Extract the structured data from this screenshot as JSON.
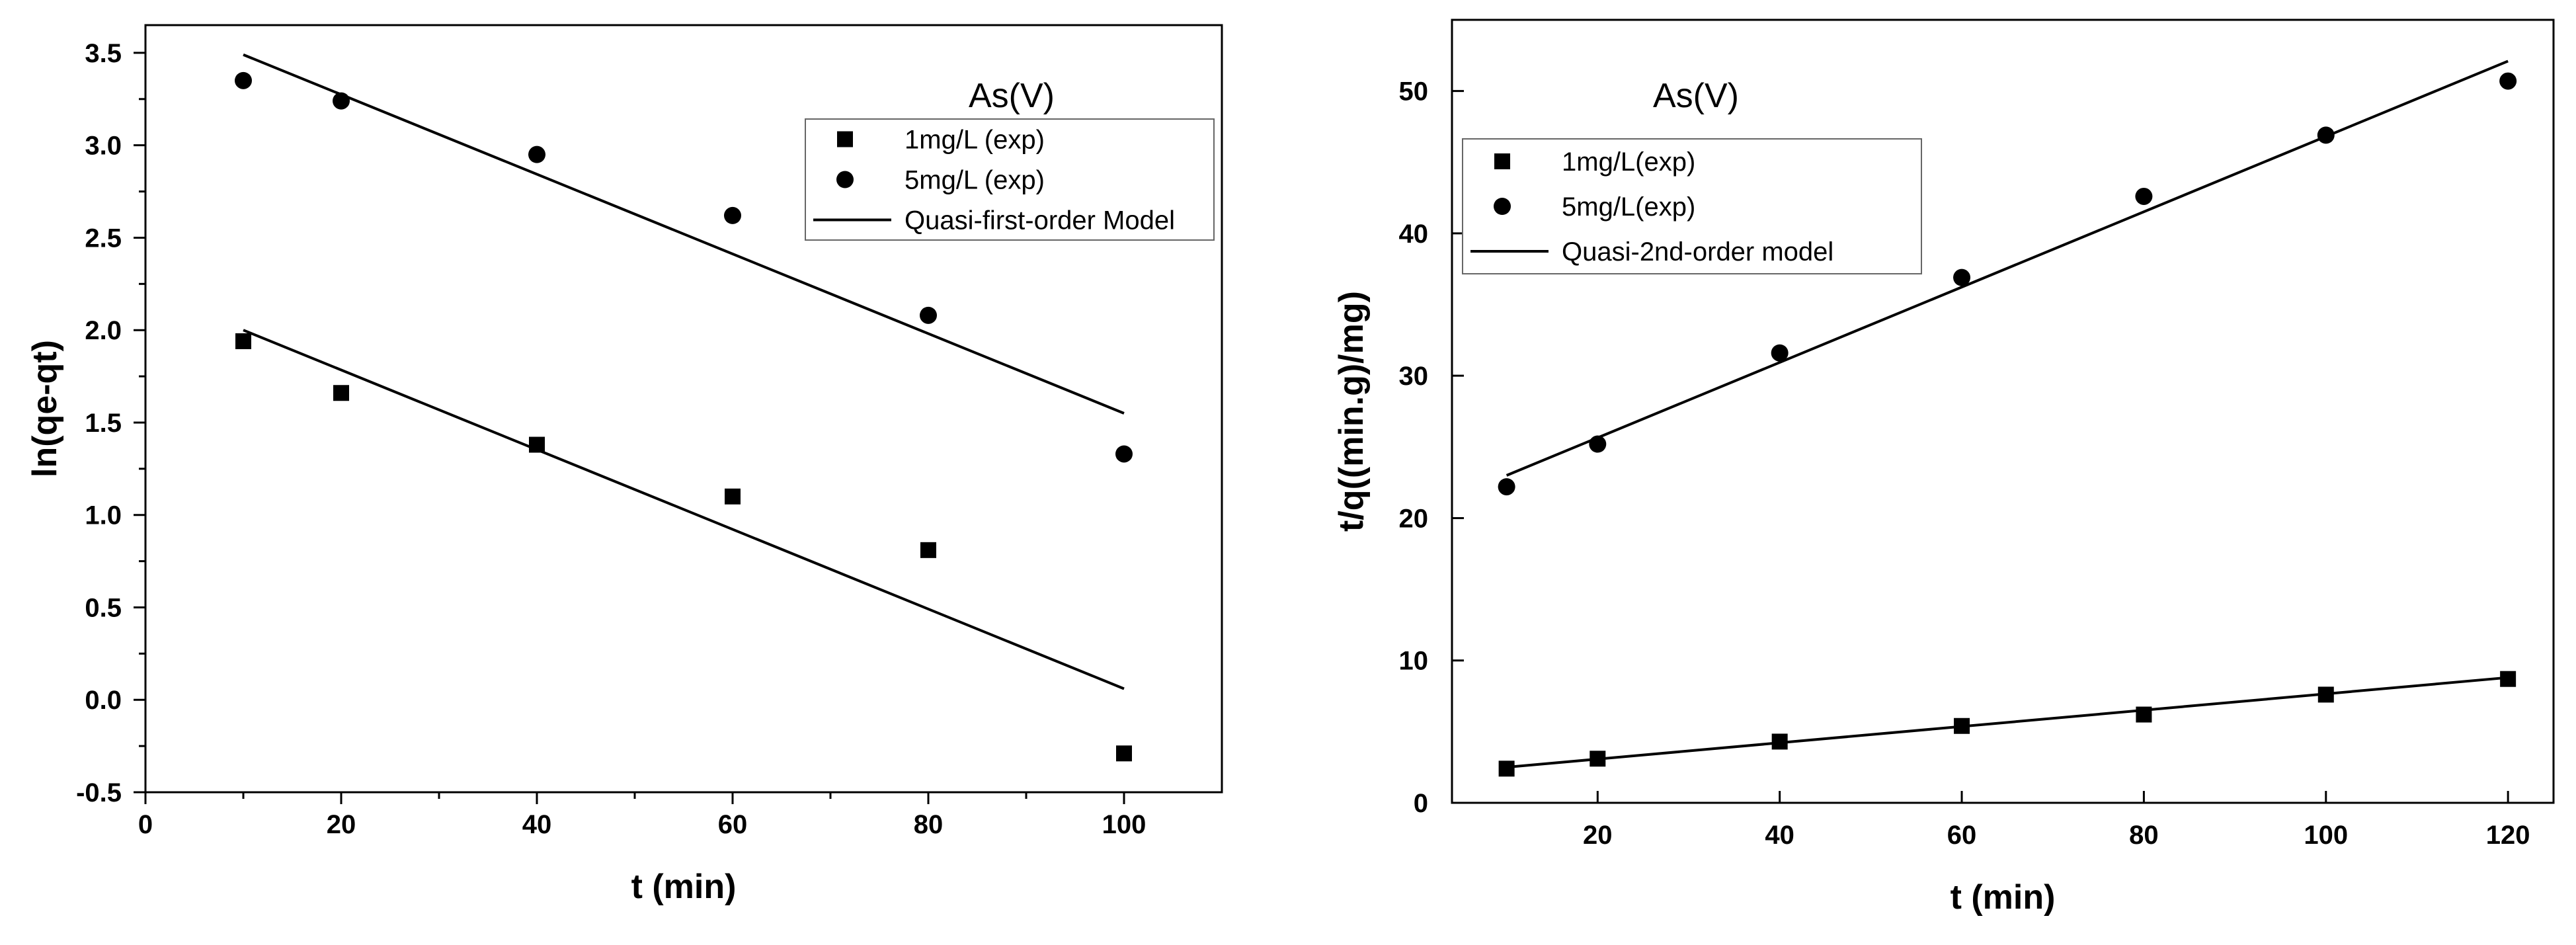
{
  "chart_data": [
    {
      "type": "scatter",
      "annotation": "As(V)",
      "xlabel": "t (min)",
      "ylabel": "ln(qe-qt)",
      "xlim": [
        0,
        110
      ],
      "ylim": [
        -0.5,
        3.65
      ],
      "xticks": [
        0,
        20,
        40,
        60,
        80,
        100
      ],
      "xtick_labels": [
        "0",
        "20",
        "40",
        "60",
        "80",
        "100"
      ],
      "yticks": [
        -0.5,
        0.0,
        0.5,
        1.0,
        1.5,
        2.0,
        2.5,
        3.0,
        3.5
      ],
      "ytick_labels": [
        "-0.5",
        "0.0",
        "0.5",
        "1.0",
        "1.5",
        "2.0",
        "2.5",
        "3.0",
        "3.5"
      ],
      "legend_position": "top-right",
      "series": [
        {
          "name": "1mg/L (exp)",
          "marker": "square",
          "x": [
            10,
            20,
            40,
            60,
            80,
            100
          ],
          "y": [
            1.94,
            1.66,
            1.38,
            1.1,
            0.81,
            -0.29
          ]
        },
        {
          "name": "5mg/L (exp)",
          "marker": "circle",
          "x": [
            10,
            20,
            40,
            60,
            80,
            100
          ],
          "y": [
            3.35,
            3.24,
            2.95,
            2.62,
            2.08,
            1.33
          ]
        }
      ],
      "fit_name": "Quasi-first-order Model",
      "fits": [
        {
          "x": [
            10,
            100
          ],
          "y": [
            2.0,
            0.06
          ]
        },
        {
          "x": [
            10,
            100
          ],
          "y": [
            3.49,
            1.55
          ]
        }
      ]
    },
    {
      "type": "scatter",
      "annotation": "As(V)",
      "xlabel": "t (min)",
      "ylabel": "t/q((min.g)/mg)",
      "xlim": [
        4,
        125
      ],
      "ylim": [
        0,
        55
      ],
      "xticks": [
        20,
        40,
        60,
        80,
        100,
        120
      ],
      "xtick_labels": [
        "20",
        "40",
        "60",
        "80",
        "100",
        "120"
      ],
      "yticks": [
        0,
        10,
        20,
        30,
        40,
        50
      ],
      "ytick_labels": [
        "0",
        "10",
        "20",
        "30",
        "40",
        "50"
      ],
      "legend_position": "top-left",
      "series": [
        {
          "name": "1mg/L(exp)",
          "marker": "square",
          "x": [
            10,
            20,
            40,
            60,
            80,
            100,
            120
          ],
          "y": [
            2.4,
            3.1,
            4.3,
            5.4,
            6.2,
            7.6,
            8.7
          ]
        },
        {
          "name": "5mg/L(exp)",
          "marker": "circle",
          "x": [
            10,
            20,
            40,
            60,
            80,
            100,
            120
          ],
          "y": [
            22.2,
            25.2,
            31.6,
            36.9,
            42.6,
            46.9,
            50.7
          ]
        }
      ],
      "fit_name": "Quasi-2nd-order model",
      "fits": [
        {
          "x": [
            10,
            120
          ],
          "y": [
            2.5,
            8.8
          ]
        },
        {
          "x": [
            10,
            120
          ],
          "y": [
            23.0,
            52.1
          ]
        }
      ]
    }
  ]
}
